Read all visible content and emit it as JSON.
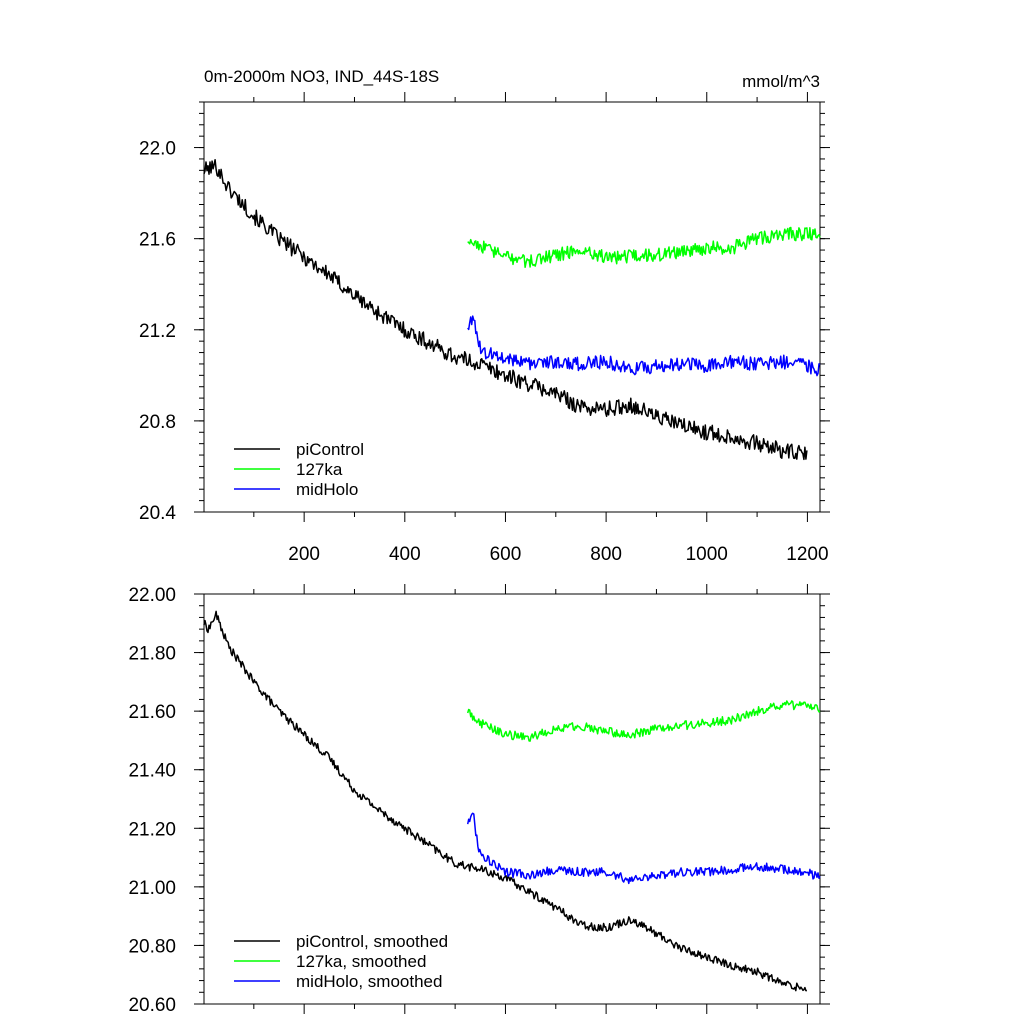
{
  "chart_data": [
    {
      "type": "line",
      "title": "0m-2000m NO3, IND_44S-18S",
      "units": "mmol/m^3",
      "xlabel": "",
      "ylabel": "",
      "xlim": [
        1,
        1225
      ],
      "ylim": [
        20.4,
        22.2
      ],
      "xticks": [
        200,
        400,
        600,
        800,
        1000,
        1200
      ],
      "xtick_labels": [
        "200",
        "400",
        "600",
        "800",
        "1000",
        "1200"
      ],
      "yticks": [
        20.4,
        20.8,
        21.2,
        21.6,
        22.0
      ],
      "ytick_labels": [
        "20.4",
        "20.8",
        "21.2",
        "21.6",
        "22.0"
      ],
      "grid": false,
      "legend_position": "bottom-left",
      "series": [
        {
          "name": "piControl",
          "color": "#000000",
          "x": [
            1,
            25,
            50,
            100,
            150,
            200,
            250,
            300,
            350,
            400,
            450,
            500,
            550,
            600,
            650,
            700,
            750,
            800,
            850,
            900,
            950,
            1000,
            1050,
            1100,
            1150,
            1200
          ],
          "y": [
            21.9,
            21.92,
            21.82,
            21.7,
            21.6,
            21.52,
            21.44,
            21.35,
            21.27,
            21.2,
            21.14,
            21.08,
            21.05,
            21.0,
            20.96,
            20.92,
            20.86,
            20.85,
            20.87,
            20.82,
            20.78,
            20.75,
            20.73,
            20.7,
            20.67,
            20.65
          ],
          "noise": 0.035
        },
        {
          "name": "127ka",
          "color": "#00ff00",
          "x": [
            525,
            550,
            600,
            650,
            700,
            750,
            800,
            850,
            900,
            950,
            1000,
            1050,
            1100,
            1150,
            1200,
            1225
          ],
          "y": [
            21.6,
            21.57,
            21.52,
            21.5,
            21.53,
            21.55,
            21.52,
            21.52,
            21.53,
            21.54,
            21.56,
            21.56,
            21.6,
            21.62,
            21.62,
            21.61
          ],
          "noise": 0.03
        },
        {
          "name": "midHolo",
          "color": "#0000ff",
          "x": [
            525,
            535,
            545,
            560,
            600,
            650,
            700,
            750,
            800,
            850,
            900,
            950,
            1000,
            1050,
            1100,
            1150,
            1200,
            1225
          ],
          "y": [
            21.22,
            21.26,
            21.14,
            21.1,
            21.08,
            21.05,
            21.06,
            21.05,
            21.06,
            21.03,
            21.04,
            21.05,
            21.04,
            21.06,
            21.05,
            21.06,
            21.04,
            21.02
          ],
          "noise": 0.03
        }
      ]
    },
    {
      "type": "line",
      "title": "",
      "xlabel": "",
      "ylabel": "",
      "xlim": [
        1,
        1225
      ],
      "ylim": [
        20.6,
        22.0
      ],
      "xticks": [
        200,
        400,
        600,
        800,
        1000,
        1200
      ],
      "yticks": [
        20.6,
        20.8,
        21.0,
        21.2,
        21.4,
        21.6,
        21.8,
        22.0
      ],
      "ytick_labels": [
        "20.60",
        "20.80",
        "21.00",
        "21.20",
        "21.40",
        "21.60",
        "21.80",
        "22.00"
      ],
      "grid": false,
      "legend_position": "bottom-left",
      "series": [
        {
          "name": "piControl, smoothed",
          "color": "#000000",
          "x": [
            1,
            10,
            25,
            50,
            100,
            150,
            200,
            250,
            300,
            350,
            400,
            450,
            500,
            550,
            600,
            650,
            700,
            750,
            800,
            850,
            900,
            950,
            1000,
            1050,
            1100,
            1150,
            1200
          ],
          "y": [
            21.9,
            21.88,
            21.93,
            21.82,
            21.7,
            21.6,
            21.52,
            21.44,
            21.33,
            21.26,
            21.2,
            21.14,
            21.08,
            21.06,
            21.03,
            20.98,
            20.93,
            20.87,
            20.86,
            20.89,
            20.84,
            20.79,
            20.76,
            20.73,
            20.71,
            20.67,
            20.65
          ],
          "noise": 0.014
        },
        {
          "name": "127ka, smoothed",
          "color": "#00ff00",
          "x": [
            525,
            550,
            600,
            650,
            700,
            750,
            800,
            850,
            900,
            950,
            1000,
            1050,
            1100,
            1150,
            1200,
            1225
          ],
          "y": [
            21.6,
            21.56,
            21.52,
            21.51,
            21.54,
            21.55,
            21.53,
            21.52,
            21.54,
            21.55,
            21.56,
            21.57,
            21.6,
            21.62,
            21.62,
            21.61
          ],
          "noise": 0.015
        },
        {
          "name": "midHolo, smoothed",
          "color": "#0000ff",
          "x": [
            525,
            535,
            545,
            560,
            600,
            650,
            700,
            750,
            800,
            850,
            900,
            950,
            1000,
            1050,
            1100,
            1150,
            1200,
            1225
          ],
          "y": [
            21.22,
            21.26,
            21.14,
            21.1,
            21.05,
            21.04,
            21.06,
            21.05,
            21.05,
            21.02,
            21.04,
            21.05,
            21.05,
            21.06,
            21.07,
            21.06,
            21.05,
            21.03
          ],
          "noise": 0.015
        }
      ]
    }
  ]
}
